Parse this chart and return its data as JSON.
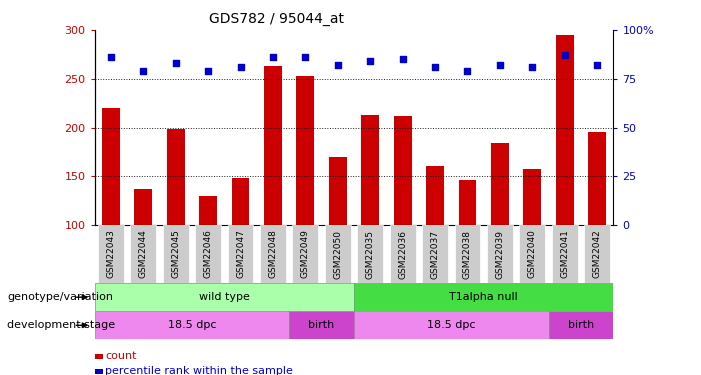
{
  "title": "GDS782 / 95044_at",
  "samples": [
    "GSM22043",
    "GSM22044",
    "GSM22045",
    "GSM22046",
    "GSM22047",
    "GSM22048",
    "GSM22049",
    "GSM22050",
    "GSM22035",
    "GSM22036",
    "GSM22037",
    "GSM22038",
    "GSM22039",
    "GSM22040",
    "GSM22041",
    "GSM22042"
  ],
  "counts": [
    220,
    137,
    198,
    130,
    148,
    263,
    253,
    170,
    213,
    212,
    161,
    146,
    184,
    157,
    295,
    195
  ],
  "percentiles": [
    86,
    79,
    83,
    79,
    81,
    86,
    86,
    82,
    84,
    85,
    81,
    79,
    82,
    81,
    87,
    82
  ],
  "ylim_left": [
    100,
    300
  ],
  "ylim_right": [
    0,
    100
  ],
  "yticks_left": [
    100,
    150,
    200,
    250,
    300
  ],
  "yticks_right": [
    0,
    25,
    50,
    75,
    100
  ],
  "yticklabels_right": [
    "0",
    "25",
    "50",
    "75",
    "100%"
  ],
  "bar_color": "#cc0000",
  "dot_color": "#0000cc",
  "genotype_groups": [
    {
      "label": "wild type",
      "start": 0,
      "end": 8,
      "color": "#aaffaa"
    },
    {
      "label": "T1alpha null",
      "start": 8,
      "end": 16,
      "color": "#44dd44"
    }
  ],
  "stage_groups": [
    {
      "label": "18.5 dpc",
      "start": 0,
      "end": 6,
      "color": "#ee88ee"
    },
    {
      "label": "birth",
      "start": 6,
      "end": 8,
      "color": "#cc44cc"
    },
    {
      "label": "18.5 dpc",
      "start": 8,
      "end": 14,
      "color": "#ee88ee"
    },
    {
      "label": "birth",
      "start": 14,
      "end": 16,
      "color": "#cc44cc"
    }
  ],
  "left_label_color": "#cc0000",
  "right_label_color": "#0000cc",
  "annot_geno": "genotype/variation",
  "annot_stage": "development stage",
  "legend_count_color": "#cc0000",
  "legend_pct_color": "#0000cc",
  "legend_count_label": "count",
  "legend_pct_label": "percentile rank within the sample",
  "xtick_bg": "#cccccc",
  "plot_bg": "#ffffff"
}
